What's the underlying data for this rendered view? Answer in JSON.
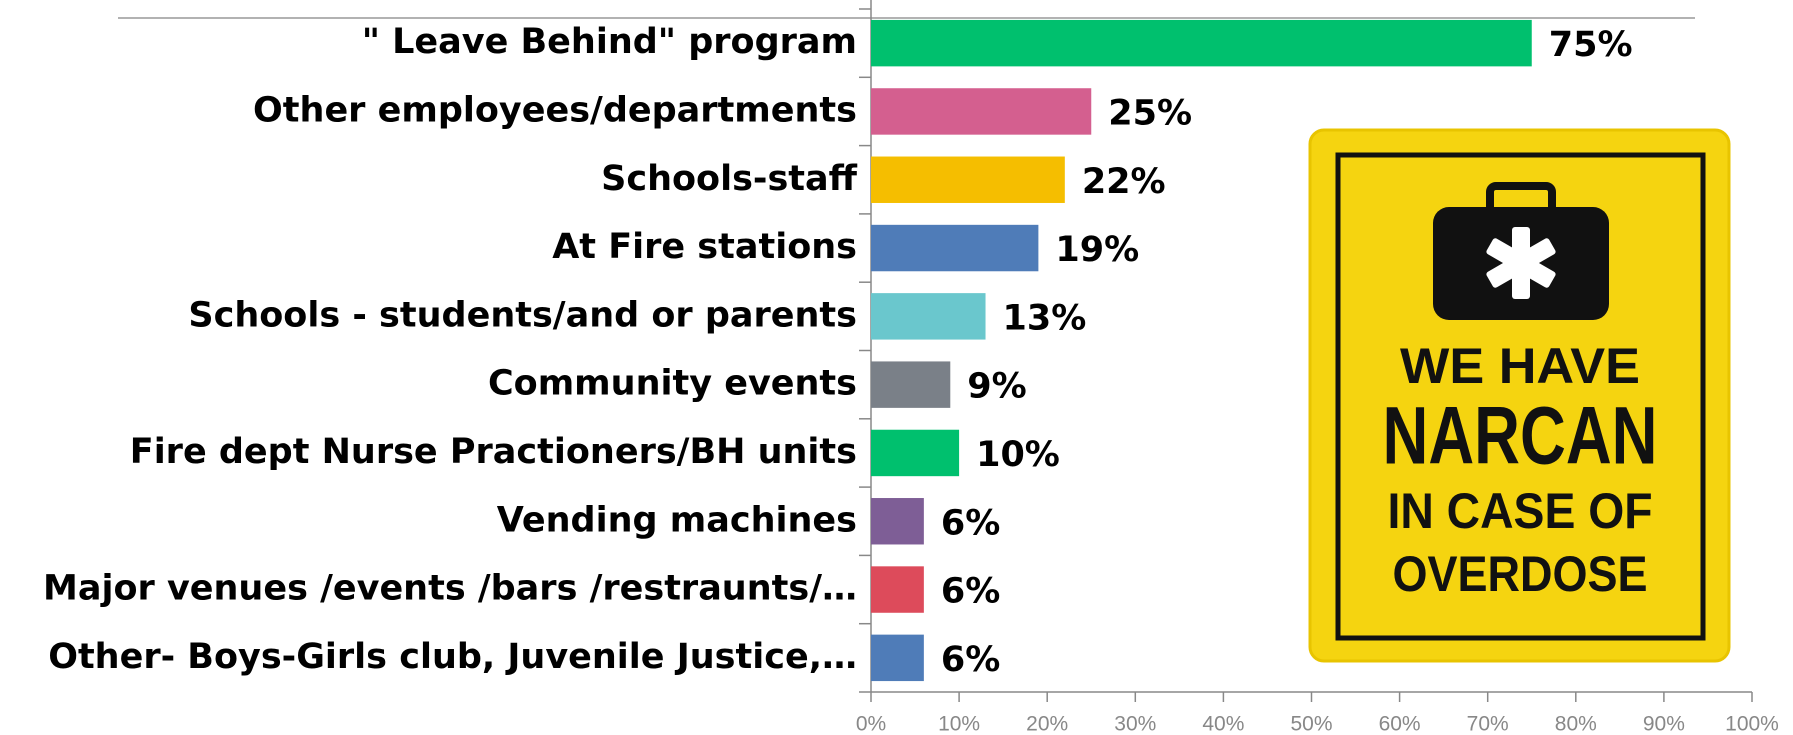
{
  "chart_data": {
    "type": "bar",
    "orientation": "horizontal",
    "categories": [
      "\" Leave Behind\" program",
      "Other employees/departments",
      "Schools-staff",
      "At Fire stations",
      "Schools - students/and or parents",
      "Community events",
      "Fire dept Nurse Practioners/BH units",
      "Vending machines",
      "Major venues /events /bars /restraunts/…",
      "Other- Boys-Girls club, Juvenile Justice,…"
    ],
    "values": [
      75,
      25,
      22,
      19,
      13,
      9,
      10,
      6,
      6,
      6
    ],
    "value_labels": [
      "75%",
      "25%",
      "22%",
      "19%",
      "13%",
      "9%",
      "10%",
      "6%",
      "6%",
      "6%"
    ],
    "colors": [
      "#00c06e",
      "#d45f8f",
      "#f5be00",
      "#4f7cb8",
      "#6ac7cd",
      "#7a8088",
      "#00c06e",
      "#7e5e96",
      "#dd4b5b",
      "#4f7cb8"
    ],
    "xlim": [
      0,
      100
    ],
    "xticks": [
      {
        "value": 0,
        "label": "0%"
      },
      {
        "value": 10,
        "label": "10%"
      },
      {
        "value": 20,
        "label": "20%"
      },
      {
        "value": 30,
        "label": "30%"
      },
      {
        "value": 40,
        "label": "40%"
      },
      {
        "value": 50,
        "label": "50%"
      },
      {
        "value": 60,
        "label": "60%"
      },
      {
        "value": 70,
        "label": "70%"
      },
      {
        "value": 80,
        "label": "80%"
      },
      {
        "value": 90,
        "label": "90%"
      },
      {
        "value": 100,
        "label": "100%"
      }
    ],
    "annotations": [
      "WE HAVE",
      "NARCAN",
      "IN CASE OF",
      "OVERDOSE"
    ]
  }
}
